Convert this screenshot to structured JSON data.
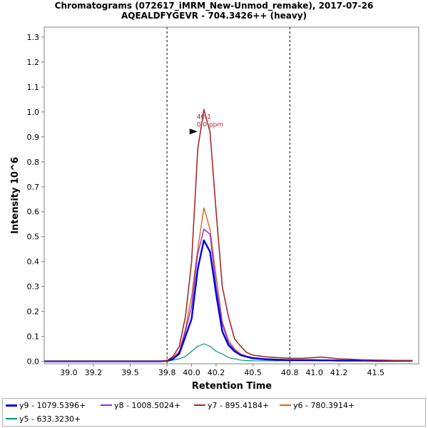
{
  "chart_data": {
    "type": "line",
    "title": "Chromatograms (072617_iMRM_New-Unmod_remake), 2017-07-26",
    "subtitle": "AQEALDFYGEVR - 704.3426++ (heavy)",
    "xlabel": "Retention Time",
    "ylabel": "Intensity 10^6",
    "xlim": [
      38.8,
      41.85
    ],
    "ylim": [
      -0.01,
      1.34
    ],
    "xticks": [
      39.0,
      39.2,
      39.5,
      39.8,
      40.0,
      40.2,
      40.5,
      40.8,
      41.0,
      41.2,
      41.5
    ],
    "xtick_labels": [
      "39.0",
      "39.2",
      "39.5",
      "39.8",
      "40.0",
      "40.2",
      "40.5",
      "40.8",
      "41.0",
      "41.2",
      "41.5"
    ],
    "yticks": [
      0.0,
      0.1,
      0.2,
      0.3,
      0.4,
      0.5,
      0.6,
      0.7,
      0.8,
      0.9,
      1.0,
      1.1,
      1.2,
      1.3
    ],
    "ytick_labels": [
      "0.0",
      "0.1",
      "0.2",
      "0.3",
      "0.4",
      "0.5",
      "0.6",
      "0.7",
      "0.8",
      "0.9",
      "1.0",
      "1.1",
      "1.2",
      "1.3"
    ],
    "vlines": [
      39.8,
      40.8
    ],
    "annotation": {
      "text1": "40.1",
      "text2": "0.0 ppm",
      "x": 40.1,
      "y": 0.93,
      "color": "#a52a2a"
    },
    "x": [
      38.8,
      39.0,
      39.2,
      39.4,
      39.6,
      39.75,
      39.8,
      39.85,
      39.9,
      39.95,
      40.0,
      40.05,
      40.1,
      40.15,
      40.2,
      40.25,
      40.3,
      40.35,
      40.4,
      40.45,
      40.5,
      40.6,
      40.7,
      40.8,
      40.9,
      41.0,
      41.05,
      41.1,
      41.2,
      41.3,
      41.4,
      41.5,
      41.6,
      41.7,
      41.8
    ],
    "series": [
      {
        "name": "y5 - 633.3230+",
        "color": "#00908a",
        "width": 1.2,
        "values": [
          0,
          0,
          0,
          0,
          0,
          0,
          0,
          0.005,
          0.01,
          0.02,
          0.04,
          0.06,
          0.07,
          0.06,
          0.04,
          0.03,
          0.015,
          0.01,
          0.005,
          0.003,
          0.002,
          0.002,
          0.002,
          0.002,
          0.002,
          0.002,
          0.002,
          0.002,
          0.002,
          0.002,
          0.002,
          0.002,
          0.002,
          0.002,
          0.002
        ]
      },
      {
        "name": "y6 - 780.3914+",
        "color": "#d2691e",
        "width": 1.4,
        "values": [
          0,
          0,
          0,
          0,
          0,
          0,
          0.002,
          0.015,
          0.04,
          0.13,
          0.26,
          0.45,
          0.615,
          0.53,
          0.34,
          0.16,
          0.085,
          0.05,
          0.03,
          0.02,
          0.015,
          0.01,
          0.008,
          0.006,
          0.005,
          0.005,
          0.005,
          0.004,
          0.004,
          0.003,
          0.003,
          0.003,
          0.002,
          0.002,
          0.002
        ]
      },
      {
        "name": "y8 - 1008.5024+",
        "color": "#8a2be2",
        "width": 1.4,
        "values": [
          0,
          0,
          0,
          0,
          0,
          0,
          0.002,
          0.012,
          0.035,
          0.12,
          0.22,
          0.43,
          0.53,
          0.51,
          0.3,
          0.15,
          0.075,
          0.045,
          0.025,
          0.02,
          0.015,
          0.01,
          0.008,
          0.006,
          0.005,
          0.005,
          0.005,
          0.004,
          0.004,
          0.003,
          0.003,
          0.003,
          0.002,
          0.002,
          0.002
        ]
      },
      {
        "name": "y9 - 1079.5396+",
        "color": "#0000e0",
        "width": 2.4,
        "values": [
          0,
          0,
          0,
          0,
          0,
          0,
          0.002,
          0.01,
          0.03,
          0.1,
          0.17,
          0.37,
          0.485,
          0.44,
          0.27,
          0.12,
          0.065,
          0.04,
          0.025,
          0.018,
          0.012,
          0.008,
          0.006,
          0.005,
          0.005,
          0.005,
          0.004,
          0.004,
          0.003,
          0.003,
          0.003,
          0.002,
          0.002,
          0.002,
          0.002
        ]
      },
      {
        "name": "y7 - 895.4184+",
        "color": "#a52a2a",
        "width": 1.6,
        "values": [
          0,
          0,
          0,
          0,
          0,
          0,
          0.003,
          0.02,
          0.06,
          0.18,
          0.4,
          0.85,
          1.01,
          0.92,
          0.6,
          0.3,
          0.18,
          0.09,
          0.06,
          0.035,
          0.025,
          0.018,
          0.015,
          0.012,
          0.012,
          0.015,
          0.017,
          0.015,
          0.01,
          0.008,
          0.006,
          0.005,
          0.004,
          0.003,
          0.002
        ]
      }
    ]
  },
  "legend": {
    "items": [
      {
        "name": "y9 - 1079.5396+",
        "color": "#0000e0"
      },
      {
        "name": "y8 - 1008.5024+",
        "color": "#8a2be2"
      },
      {
        "name": "y7 - 895.4184+",
        "color": "#a52a2a"
      },
      {
        "name": "y6 - 780.3914+",
        "color": "#d2691e"
      },
      {
        "name": "y5 - 633.3230+",
        "color": "#00908a"
      }
    ]
  }
}
